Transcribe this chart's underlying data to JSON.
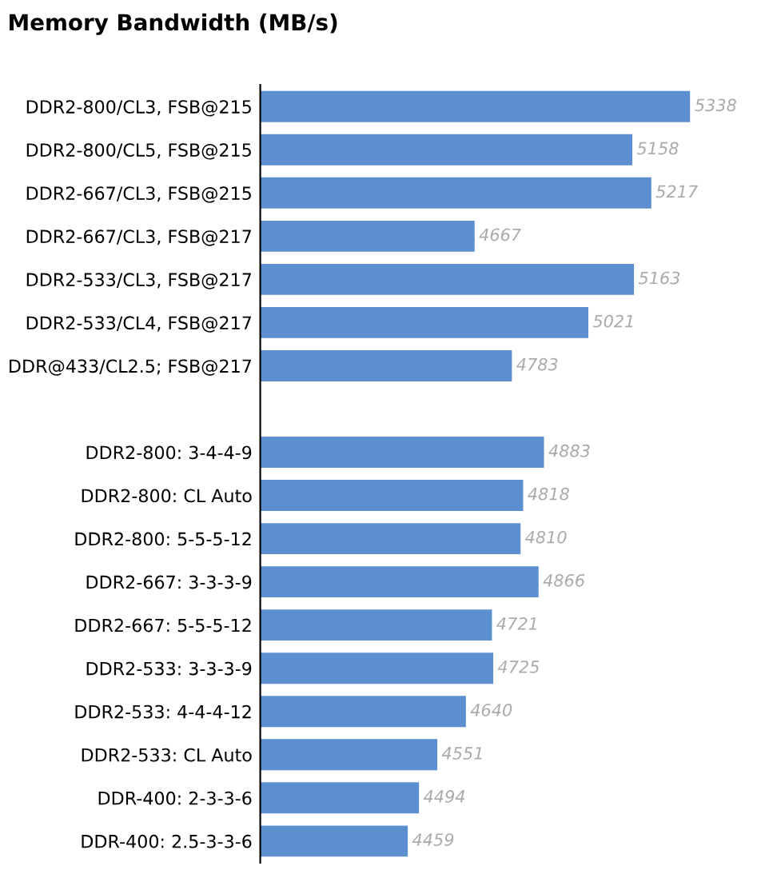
{
  "chart_data": {
    "type": "bar",
    "orientation": "horizontal",
    "title": "Memory Bandwidth (MB/s)",
    "categories": [
      "DDR2-800/CL3, FSB@215",
      "DDR2-800/CL5, FSB@215",
      "DDR2-667/CL3, FSB@215",
      "DDR2-667/CL3, FSB@217",
      "DDR2-533/CL3, FSB@217",
      "DDR2-533/CL4, FSB@217",
      "DDR@433/CL2.5; FSB@217",
      null,
      "DDR2-800: 3-4-4-9",
      "DDR2-800: CL Auto",
      "DDR2-800: 5-5-5-12",
      "DDR2-667: 3-3-3-9",
      "DDR2-667: 5-5-5-12",
      "DDR2-533: 3-3-3-9",
      "DDR2-533: 4-4-4-12",
      "DDR2-533: CL Auto",
      "DDR-400: 2-3-3-6",
      "DDR-400: 2.5-3-3-6"
    ],
    "values": [
      5338,
      5158,
      5217,
      4667,
      5163,
      5021,
      4783,
      null,
      4883,
      4818,
      4810,
      4866,
      4721,
      4725,
      4640,
      4551,
      4494,
      4459
    ],
    "color": "#5b8fd0",
    "xlim": [
      4000,
      5338
    ],
    "data_labels": true,
    "tick_labels": "y",
    "grid": false,
    "legend": false
  }
}
